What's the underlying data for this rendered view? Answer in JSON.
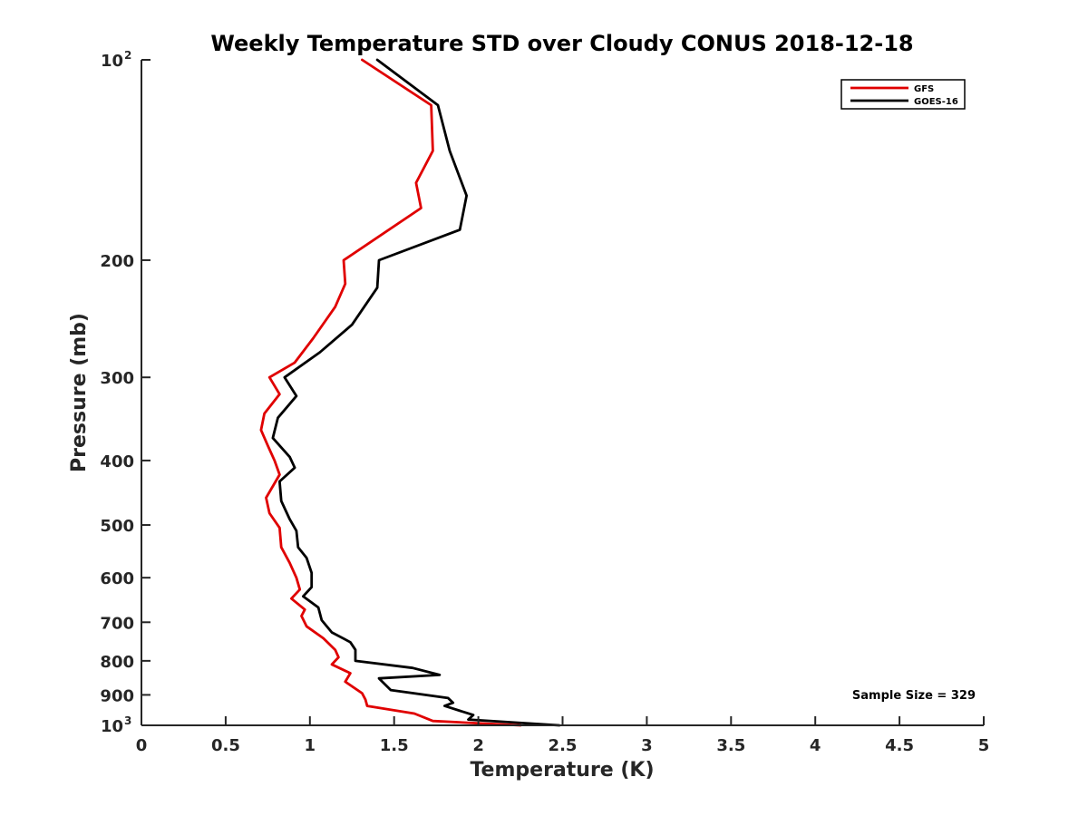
{
  "chart_data": {
    "type": "line",
    "title": "Weekly Temperature STD over Cloudy CONUS 2018-12-18",
    "xlabel": "Temperature (K)",
    "ylabel": "Pressure (mb)",
    "xlim": [
      0,
      5
    ],
    "ylim": [
      100,
      1000
    ],
    "y_scale": "log",
    "y_reversed": true,
    "x_ticks": [
      0,
      0.5,
      1,
      1.5,
      2,
      2.5,
      3,
      3.5,
      4,
      4.5,
      5
    ],
    "x_tick_labels": [
      "0",
      "0.5",
      "1",
      "1.5",
      "2",
      "2.5",
      "3",
      "3.5",
      "4",
      "4.5",
      "5"
    ],
    "y_ticks": [
      {
        "value": 100,
        "label": "10",
        "sup": "2"
      },
      {
        "value": 200,
        "label": "200",
        "sup": ""
      },
      {
        "value": 300,
        "label": "300",
        "sup": ""
      },
      {
        "value": 400,
        "label": "400",
        "sup": ""
      },
      {
        "value": 500,
        "label": "500",
        "sup": ""
      },
      {
        "value": 600,
        "label": "600",
        "sup": ""
      },
      {
        "value": 700,
        "label": "700",
        "sup": ""
      },
      {
        "value": 800,
        "label": "800",
        "sup": ""
      },
      {
        "value": 900,
        "label": "900",
        "sup": ""
      },
      {
        "value": 1000,
        "label": "10",
        "sup": "3"
      }
    ],
    "grid": false,
    "legend_position": "top-right",
    "annotation": "Sample Size = 329",
    "series": [
      {
        "name": "GFS",
        "color": "#e00000",
        "points": [
          [
            1.31,
            100
          ],
          [
            1.72,
            117
          ],
          [
            1.73,
            137
          ],
          [
            1.63,
            153
          ],
          [
            1.66,
            167
          ],
          [
            1.2,
            200
          ],
          [
            1.21,
            217
          ],
          [
            1.15,
            235
          ],
          [
            1.02,
            262
          ],
          [
            0.91,
            285
          ],
          [
            0.76,
            300
          ],
          [
            0.82,
            318
          ],
          [
            0.73,
            340
          ],
          [
            0.71,
            360
          ],
          [
            0.75,
            380
          ],
          [
            0.79,
            400
          ],
          [
            0.82,
            420
          ],
          [
            0.74,
            455
          ],
          [
            0.76,
            480
          ],
          [
            0.82,
            505
          ],
          [
            0.83,
            540
          ],
          [
            0.88,
            570
          ],
          [
            0.92,
            600
          ],
          [
            0.94,
            625
          ],
          [
            0.89,
            645
          ],
          [
            0.97,
            670
          ],
          [
            0.95,
            685
          ],
          [
            0.98,
            710
          ],
          [
            1.08,
            740
          ],
          [
            1.15,
            770
          ],
          [
            1.17,
            790
          ],
          [
            1.13,
            810
          ],
          [
            1.24,
            835
          ],
          [
            1.21,
            860
          ],
          [
            1.31,
            895
          ],
          [
            1.33,
            915
          ],
          [
            1.34,
            935
          ],
          [
            1.62,
            960
          ],
          [
            1.73,
            985
          ],
          [
            2.25,
            1000
          ]
        ]
      },
      {
        "name": "GOES-16",
        "color": "#000000",
        "points": [
          [
            1.4,
            100
          ],
          [
            1.76,
            117
          ],
          [
            1.83,
            137
          ],
          [
            1.93,
            160
          ],
          [
            1.89,
            180
          ],
          [
            1.41,
            200
          ],
          [
            1.4,
            220
          ],
          [
            1.25,
            250
          ],
          [
            1.06,
            275
          ],
          [
            0.85,
            300
          ],
          [
            0.92,
            320
          ],
          [
            0.81,
            345
          ],
          [
            0.78,
            370
          ],
          [
            0.88,
            395
          ],
          [
            0.91,
            410
          ],
          [
            0.82,
            430
          ],
          [
            0.83,
            460
          ],
          [
            0.88,
            490
          ],
          [
            0.92,
            510
          ],
          [
            0.93,
            540
          ],
          [
            0.98,
            560
          ],
          [
            1.01,
            590
          ],
          [
            1.01,
            620
          ],
          [
            0.96,
            640
          ],
          [
            1.05,
            665
          ],
          [
            1.07,
            695
          ],
          [
            1.13,
            725
          ],
          [
            1.24,
            750
          ],
          [
            1.27,
            770
          ],
          [
            1.27,
            800
          ],
          [
            1.61,
            820
          ],
          [
            1.77,
            840
          ],
          [
            1.41,
            850
          ],
          [
            1.48,
            885
          ],
          [
            1.82,
            910
          ],
          [
            1.85,
            925
          ],
          [
            1.8,
            935
          ],
          [
            1.97,
            965
          ],
          [
            1.94,
            980
          ],
          [
            2.48,
            1000
          ]
        ]
      }
    ]
  }
}
